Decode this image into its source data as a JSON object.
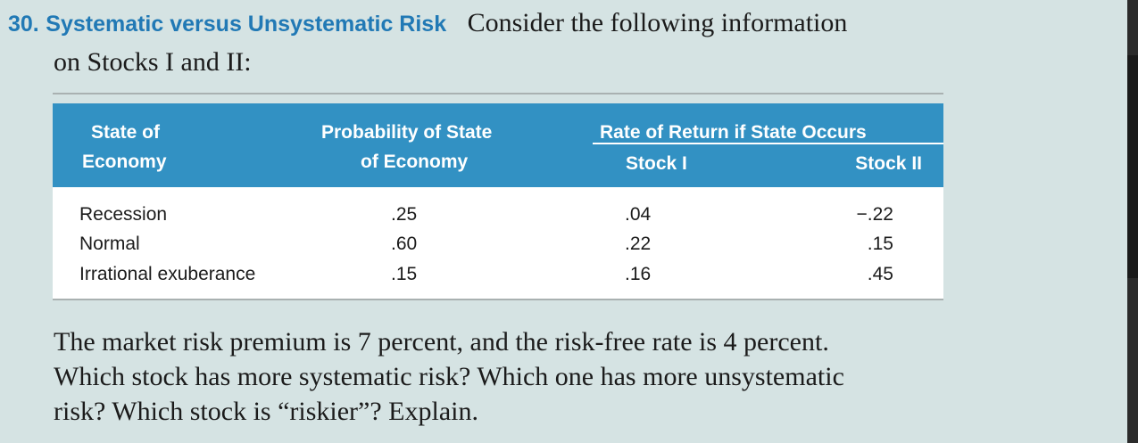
{
  "problem": {
    "number": "30.",
    "title": "Systematic versus Unsystematic Risk",
    "intro_line1": "Consider the following information",
    "intro_line2": "on Stocks I and II:"
  },
  "table": {
    "headers": {
      "state_line1": "State of",
      "state_line2": "Economy",
      "prob_line1": "Probability of State",
      "prob_line2": "of Economy",
      "group": "Rate of Return if State Occurs",
      "stock1": "Stock I",
      "stock2": "Stock II"
    },
    "rows": [
      {
        "state": "Recession",
        "prob": ".25",
        "stock1": ".04",
        "stock2": "−.22"
      },
      {
        "state": "Normal",
        "prob": ".60",
        "stock1": ".22",
        "stock2": ".15"
      },
      {
        "state": "Irrational exuberance",
        "prob": ".15",
        "stock1": ".16",
        "stock2": ".45"
      }
    ]
  },
  "question": {
    "line1": "The market risk premium is 7 percent, and the risk-free rate is 4 percent.",
    "line2": "Which stock has more systematic risk? Which one has more unsystematic",
    "line3": "risk? Which stock is “riskier”? Explain."
  },
  "colors": {
    "header_blue": "#3291c3",
    "title_blue": "#2179b5",
    "background": "#d5e3e3"
  }
}
